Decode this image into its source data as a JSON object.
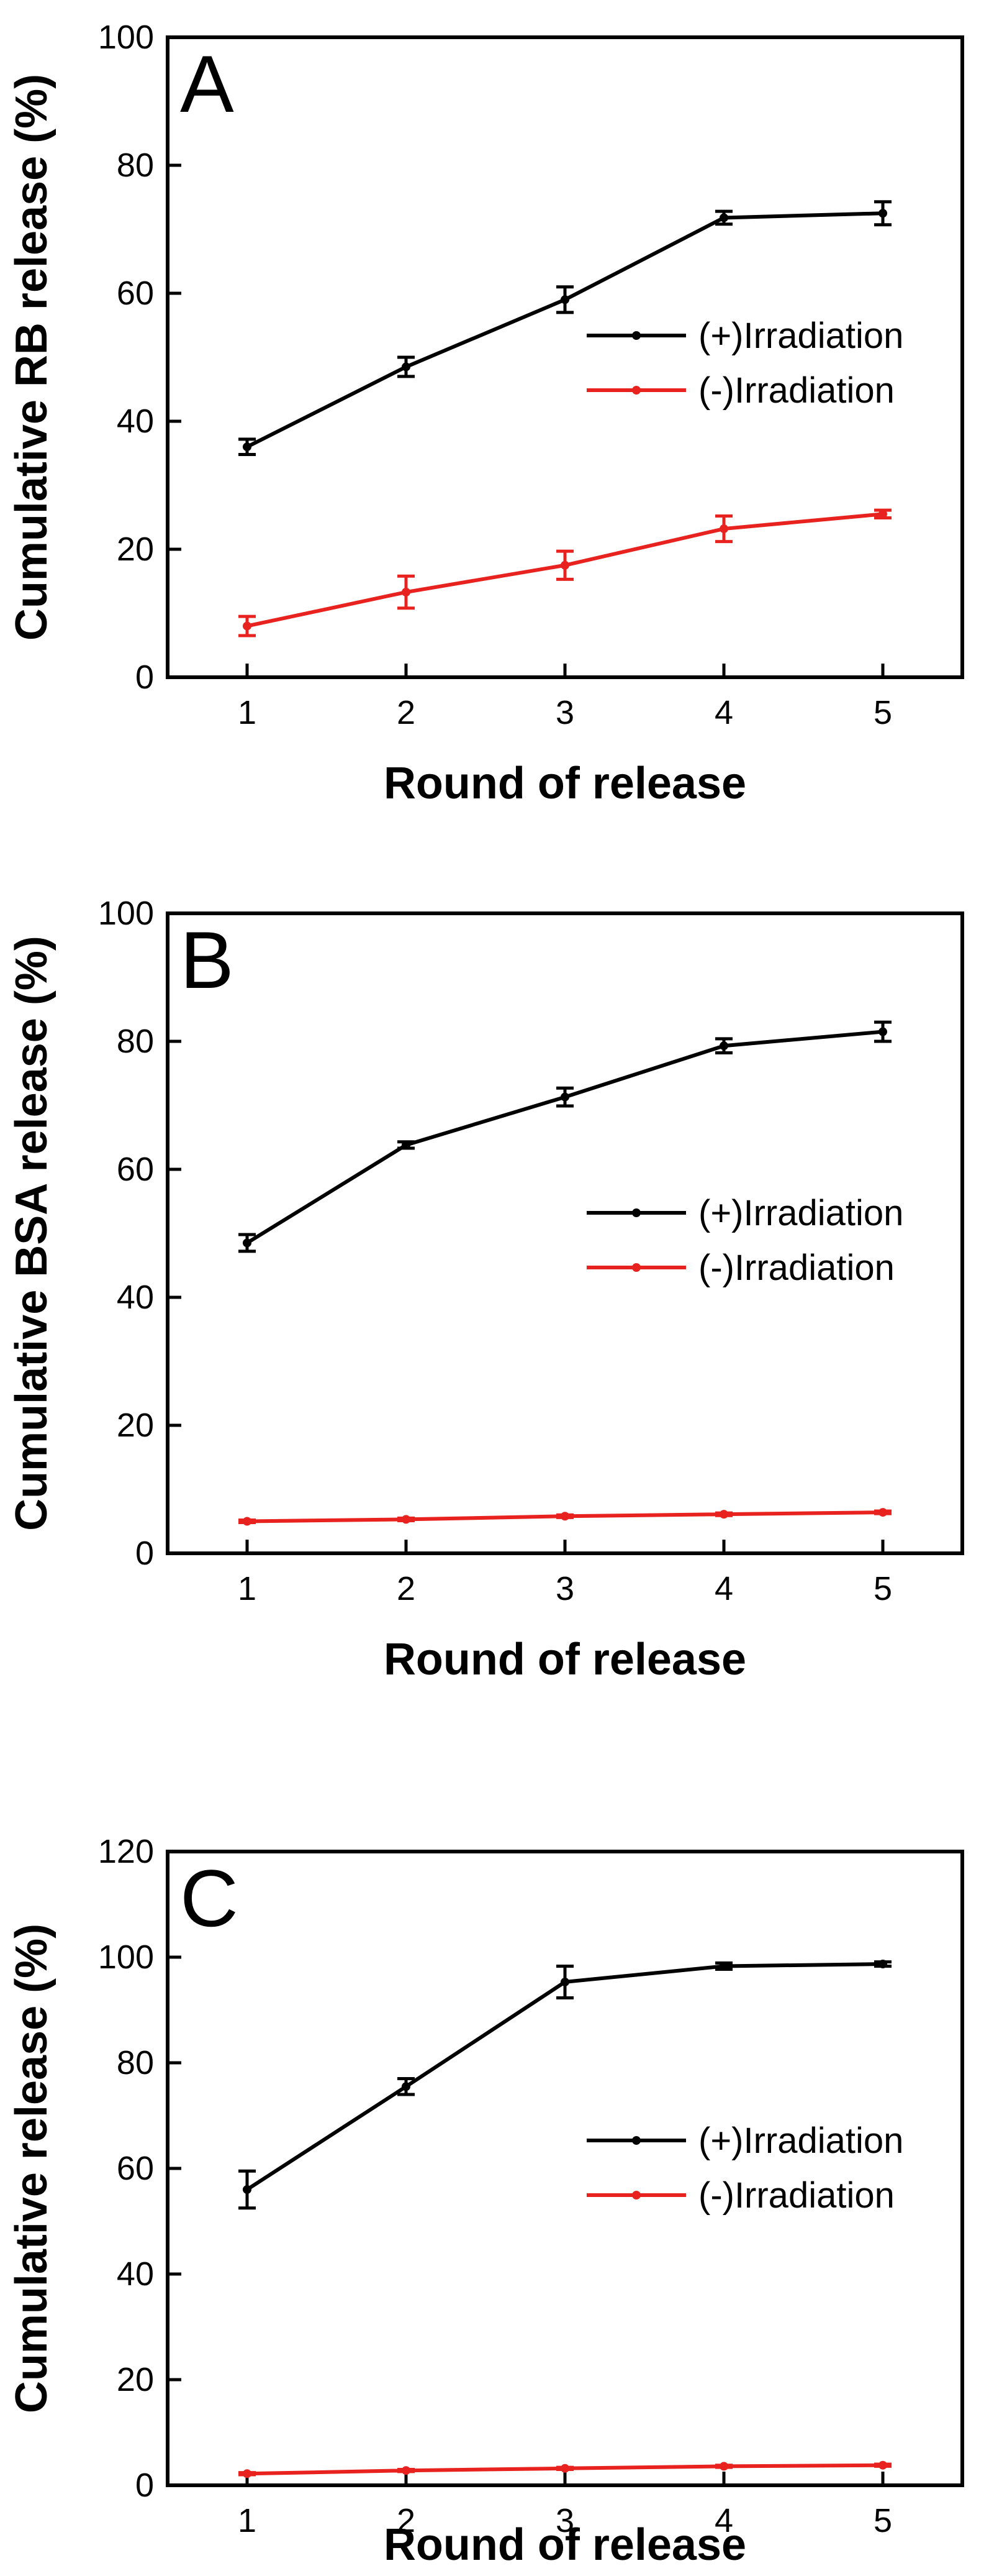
{
  "chart_data": [
    {
      "panel": "A",
      "type": "line",
      "x": [
        1,
        2,
        3,
        4,
        5
      ],
      "xlabel": "Round of release",
      "ylabel": "Cumulative RB release (%)",
      "ylim": [
        0,
        100
      ],
      "yticks": [
        0,
        20,
        40,
        60,
        80,
        100
      ],
      "legend_position": "right",
      "series": [
        {
          "name": "(+)Irradiation",
          "color": "#000000",
          "values": [
            36.0,
            48.5,
            59.0,
            71.8,
            72.5
          ],
          "errors": [
            1.2,
            1.5,
            2.0,
            1.0,
            1.8
          ]
        },
        {
          "name": "(-)Irradiation",
          "color": "#e8231f",
          "values": [
            8.0,
            13.3,
            17.5,
            23.2,
            25.5
          ],
          "errors": [
            1.5,
            2.5,
            2.2,
            2.0,
            0.6
          ]
        }
      ]
    },
    {
      "panel": "B",
      "type": "line",
      "x": [
        1,
        2,
        3,
        4,
        5
      ],
      "xlabel": "Round of release",
      "ylabel": "Cumulative BSA release (%)",
      "ylim": [
        0,
        100
      ],
      "yticks": [
        0,
        20,
        40,
        60,
        80,
        100
      ],
      "legend_position": "right",
      "series": [
        {
          "name": "(+)Irradiation",
          "color": "#000000",
          "values": [
            48.5,
            63.8,
            71.3,
            79.3,
            81.5
          ],
          "errors": [
            1.3,
            0.5,
            1.4,
            1.1,
            1.5
          ]
        },
        {
          "name": "(-)Irradiation",
          "color": "#e8231f",
          "values": [
            5.0,
            5.3,
            5.8,
            6.1,
            6.4
          ],
          "errors": [
            0.2,
            0.2,
            0.2,
            0.2,
            0.2
          ]
        }
      ]
    },
    {
      "panel": "C",
      "type": "line",
      "x": [
        1,
        2,
        3,
        4,
        5
      ],
      "xlabel": "Round of release",
      "ylabel": "Cumulative release (%)",
      "ylim": [
        0,
        120
      ],
      "yticks": [
        0,
        20,
        40,
        60,
        80,
        100,
        120
      ],
      "legend_position": "right",
      "series": [
        {
          "name": "(+)Irradiation",
          "color": "#000000",
          "values": [
            56.0,
            75.5,
            95.3,
            98.3,
            98.7
          ],
          "errors": [
            3.5,
            1.5,
            3.0,
            0.6,
            0.4
          ]
        },
        {
          "name": "(-)Irradiation",
          "color": "#e8231f",
          "values": [
            2.2,
            2.8,
            3.2,
            3.6,
            3.8
          ],
          "errors": [
            0.2,
            0.2,
            0.2,
            0.2,
            0.2
          ]
        }
      ]
    }
  ]
}
